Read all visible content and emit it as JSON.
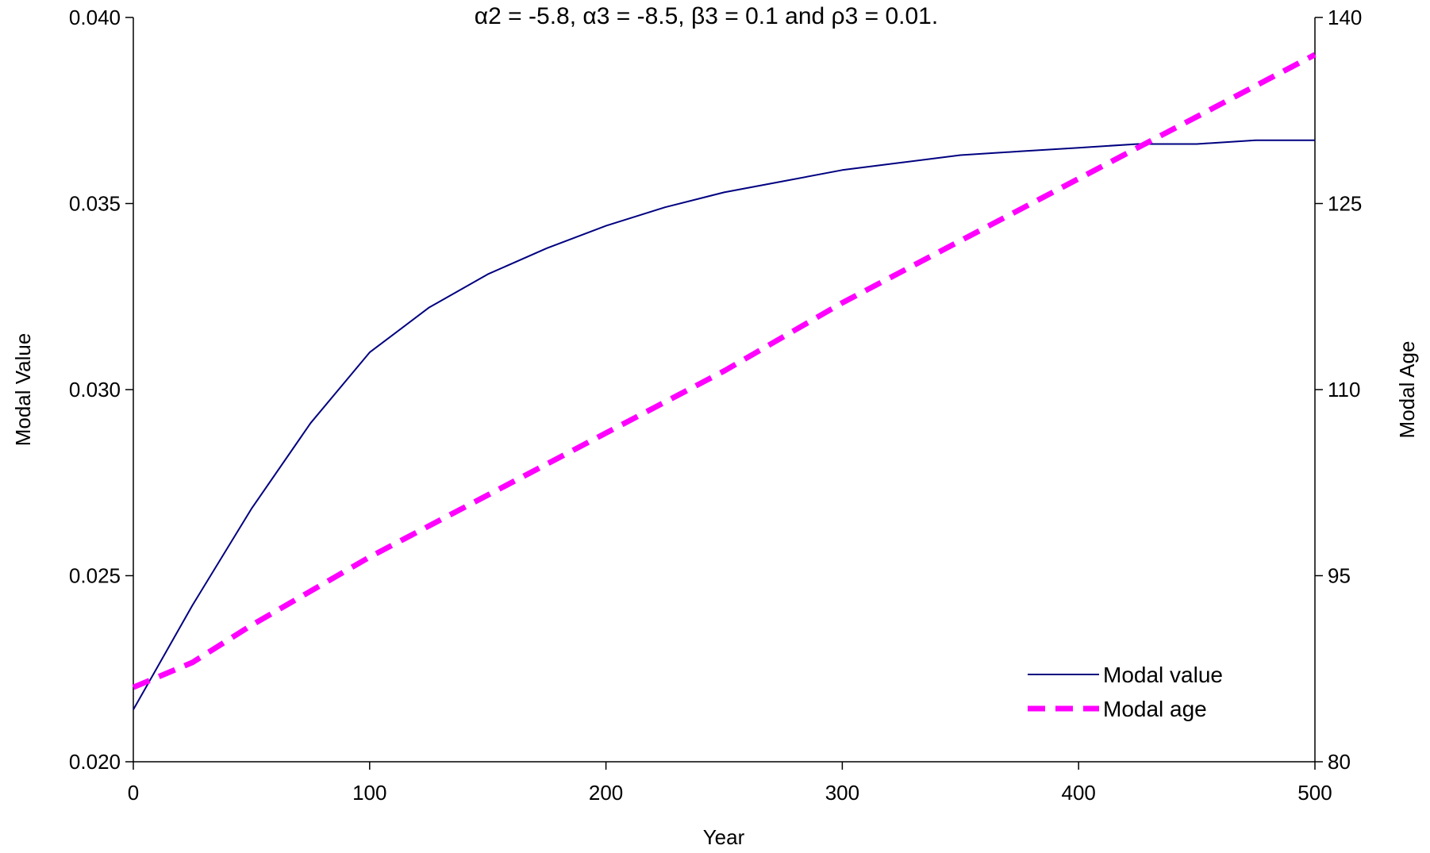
{
  "chart_data": {
    "type": "line",
    "title": "α2 = -5.8, α3 = -8.5, β3 = 0.1 and ρ3 = 0.01.",
    "xlabel": "Year",
    "ylabel": "Modal Value",
    "y2label": "Modal Age",
    "xlim": [
      0,
      500
    ],
    "ylim": [
      0.02,
      0.04
    ],
    "y2lim": [
      80,
      140
    ],
    "xticks": [
      "0",
      "100",
      "200",
      "300",
      "400",
      "500"
    ],
    "yticks": [
      "0.020",
      "0.025",
      "0.030",
      "0.035",
      "0.040"
    ],
    "y2ticks": [
      "80",
      "95",
      "110",
      "125",
      "140"
    ],
    "legend_position": "bottom-right",
    "grid": false,
    "series": [
      {
        "name": "Modal value",
        "axis": "left",
        "color": "#000080",
        "style": "solid",
        "x": [
          0,
          25,
          50,
          75,
          100,
          125,
          150,
          175,
          200,
          225,
          250,
          275,
          300,
          325,
          350,
          375,
          400,
          425,
          450,
          475,
          500
        ],
        "values": [
          0.0214,
          0.0242,
          0.0268,
          0.0291,
          0.031,
          0.0322,
          0.0331,
          0.0338,
          0.0344,
          0.0349,
          0.0353,
          0.0356,
          0.0359,
          0.0361,
          0.0363,
          0.0364,
          0.0365,
          0.0366,
          0.0366,
          0.0367,
          0.0367
        ]
      },
      {
        "name": "Modal age",
        "axis": "right",
        "color": "#ff00ff",
        "style": "dashed",
        "x": [
          0,
          25,
          50,
          100,
          150,
          200,
          250,
          300,
          350,
          400,
          450,
          500
        ],
        "values": [
          86,
          88,
          91,
          96.5,
          101.5,
          106.5,
          111.5,
          117,
          122,
          127,
          132,
          137
        ]
      }
    ]
  }
}
